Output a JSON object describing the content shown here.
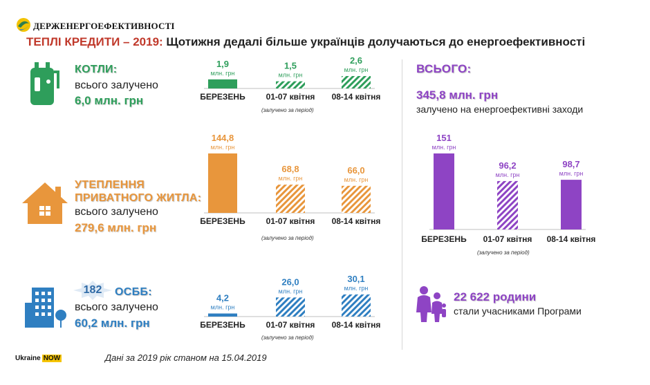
{
  "header": {
    "org": "ДЕРЖЕНЕРГОЕФЕКТИВНОСТІ",
    "headline_red": "ТЕПЛІ КРЕДИТИ – 2019:",
    "headline_rest": "Щотижня дедалі більше українців долучаються до енергоефективності"
  },
  "sections": {
    "boilers": {
      "title": "КОТЛИ:",
      "sub": "всього залучено",
      "total": "6,0 млн. грн"
    },
    "insulation": {
      "title1": "УТЕПЛЕННЯ",
      "title2": "ПРИВАТНОГО ЖИТЛА:",
      "sub": "всього залучено",
      "total": "279,6 млн. грн"
    },
    "osbb": {
      "badge": "182",
      "title": "ОСББ:",
      "sub": "всього залучено",
      "total": "60,2 млн. грн"
    },
    "total": {
      "title": "ВСЬОГО:",
      "amount": "345,8 млн. грн",
      "sub": "залучено на енергоефективні заходи"
    },
    "families": {
      "count": "22 622 родини",
      "sub": "стали учасниками Програми"
    }
  },
  "period_note": "(залучено за період)",
  "footer": {
    "date_note": "Дані за 2019 рік станом на 15.04.2019",
    "brand1": "Ukraine",
    "brand2": "NOW"
  },
  "colors": {
    "green": "#2e9e5b",
    "orange": "#e8963c",
    "blue": "#2f7fc1",
    "purple": "#8e44c4",
    "red": "#c0392b"
  },
  "icons": [
    "boiler-icon",
    "house-icon",
    "building-icon",
    "family-icon",
    "logo-icon"
  ],
  "chart_data": [
    {
      "type": "bar",
      "name": "boilers",
      "categories": [
        "БЕРЕЗЕНЬ",
        "01-07 квітня",
        "08-14 квітня"
      ],
      "values": [
        1.9,
        1.5,
        2.6
      ],
      "labels": [
        "1,9",
        "1,5",
        "2,6"
      ],
      "unit": "млн. грн",
      "hatched": [
        false,
        true,
        true
      ],
      "color": "#2e9e5b"
    },
    {
      "type": "bar",
      "name": "insulation",
      "categories": [
        "БЕРЕЗЕНЬ",
        "01-07 квітня",
        "08-14 квітня"
      ],
      "values": [
        144.8,
        68.8,
        66.0
      ],
      "labels": [
        "144,8",
        "68,8",
        "66,0"
      ],
      "unit": "млн. грн",
      "hatched": [
        false,
        true,
        true
      ],
      "color": "#e8963c"
    },
    {
      "type": "bar",
      "name": "osbb",
      "categories": [
        "БЕРЕЗЕНЬ",
        "01-07 квітня",
        "08-14 квітня"
      ],
      "values": [
        4.2,
        26.0,
        30.1
      ],
      "labels": [
        "4,2",
        "26,0",
        "30,1"
      ],
      "unit": "млн. грн",
      "hatched": [
        false,
        true,
        true
      ],
      "color": "#2f7fc1"
    },
    {
      "type": "bar",
      "name": "total",
      "categories": [
        "БЕРЕЗЕНЬ",
        "01-07 квітня",
        "08-14 квітня"
      ],
      "values": [
        151,
        96.2,
        98.7
      ],
      "labels": [
        "151",
        "96,2",
        "98,7"
      ],
      "unit": "млн. грн",
      "hatched": [
        false,
        true,
        false
      ],
      "color": "#8e44c4"
    }
  ]
}
